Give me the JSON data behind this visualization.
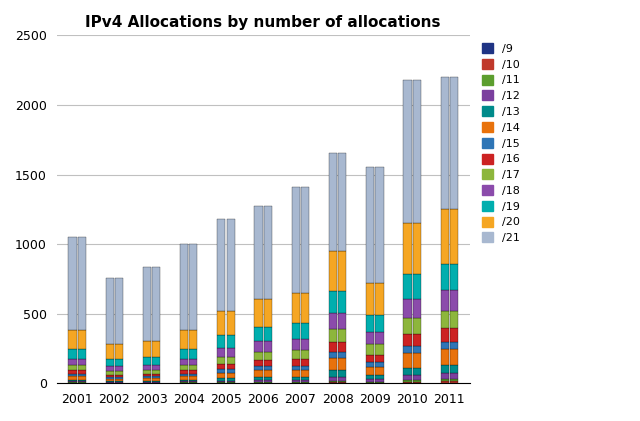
{
  "title": "IPv4 Allocations by number of allocations",
  "years": [
    2001,
    2002,
    2003,
    2004,
    2005,
    2006,
    2007,
    2008,
    2009,
    2010,
    2011
  ],
  "prefix_labels": [
    "/9",
    "/10",
    "/11",
    "/12",
    "/13",
    "/14",
    "/15",
    "/16",
    "/17",
    "/18",
    "/19",
    "/20",
    "/21"
  ],
  "colors": {
    "/9": "#1F3484",
    "/10": "#C0392B",
    "/11": "#5C9E2E",
    "/12": "#7B3F9E",
    "/13": "#008B8B",
    "/14": "#E8720C",
    "/15": "#2E75B6",
    "/16": "#CC2222",
    "/17": "#8DB63C",
    "/18": "#8B4BAB",
    "/19": "#00AEAE",
    "/20": "#F5A623",
    "/21": "#A8B8D0"
  },
  "data_left": {
    "/9": [
      1,
      1,
      1,
      1,
      1,
      1,
      1,
      2,
      1,
      2,
      2
    ],
    "/10": [
      2,
      1,
      1,
      2,
      3,
      4,
      3,
      7,
      4,
      7,
      13
    ],
    "/11": [
      4,
      2,
      3,
      3,
      5,
      7,
      6,
      10,
      7,
      17,
      18
    ],
    "/12": [
      7,
      4,
      4,
      7,
      10,
      13,
      13,
      25,
      17,
      35,
      40
    ],
    "/13": [
      12,
      8,
      8,
      12,
      17,
      22,
      22,
      48,
      30,
      52,
      58
    ],
    "/14": [
      25,
      17,
      20,
      25,
      38,
      48,
      52,
      88,
      60,
      105,
      115
    ],
    "/15": [
      18,
      12,
      12,
      17,
      25,
      27,
      30,
      44,
      35,
      48,
      53
    ],
    "/16": [
      25,
      17,
      20,
      25,
      38,
      44,
      48,
      70,
      52,
      88,
      97
    ],
    "/17": [
      35,
      25,
      25,
      38,
      52,
      62,
      65,
      97,
      74,
      115,
      124
    ],
    "/18": [
      48,
      35,
      38,
      48,
      65,
      74,
      78,
      115,
      88,
      140,
      150
    ],
    "/19": [
      70,
      52,
      57,
      70,
      92,
      105,
      115,
      158,
      123,
      175,
      185
    ],
    "/20": [
      135,
      105,
      115,
      135,
      170,
      200,
      215,
      290,
      228,
      368,
      395
    ],
    "/21": [
      670,
      475,
      530,
      618,
      664,
      668,
      762,
      700,
      832,
      1030,
      952
    ]
  },
  "data_right": {
    "/9": [
      1,
      1,
      1,
      1,
      1,
      1,
      1,
      2,
      1,
      2,
      2
    ],
    "/10": [
      2,
      1,
      1,
      2,
      3,
      4,
      3,
      7,
      4,
      7,
      13
    ],
    "/11": [
      4,
      2,
      3,
      3,
      5,
      7,
      6,
      10,
      7,
      17,
      18
    ],
    "/12": [
      7,
      4,
      4,
      7,
      10,
      13,
      13,
      25,
      17,
      35,
      40
    ],
    "/13": [
      12,
      8,
      8,
      12,
      17,
      22,
      22,
      48,
      30,
      52,
      58
    ],
    "/14": [
      25,
      17,
      20,
      25,
      38,
      48,
      52,
      88,
      60,
      105,
      115
    ],
    "/15": [
      18,
      12,
      12,
      17,
      25,
      27,
      30,
      44,
      35,
      48,
      53
    ],
    "/16": [
      25,
      17,
      20,
      25,
      38,
      44,
      48,
      70,
      52,
      88,
      97
    ],
    "/17": [
      35,
      25,
      25,
      38,
      52,
      62,
      65,
      97,
      74,
      115,
      124
    ],
    "/18": [
      48,
      35,
      38,
      48,
      65,
      74,
      78,
      115,
      88,
      140,
      150
    ],
    "/19": [
      70,
      52,
      57,
      70,
      92,
      105,
      115,
      158,
      123,
      175,
      185
    ],
    "/20": [
      135,
      105,
      115,
      135,
      170,
      200,
      215,
      290,
      228,
      368,
      395
    ],
    "/21": [
      670,
      475,
      530,
      618,
      664,
      668,
      762,
      700,
      832,
      1030,
      952
    ]
  },
  "ylim": [
    0,
    2500
  ],
  "yticks": [
    0,
    500,
    1000,
    1500,
    2000,
    2500
  ],
  "background_color": "#ffffff",
  "grid_color": "#C0C0C0"
}
